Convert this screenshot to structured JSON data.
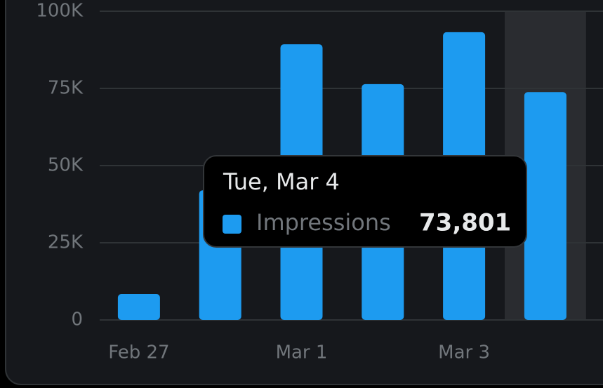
{
  "chart_data": {
    "type": "bar",
    "categories": [
      "Feb 27",
      null,
      "Mar 1",
      null,
      "Mar 3",
      null
    ],
    "series": [
      {
        "name": "Impressions",
        "color": "#1d9bf0",
        "values": [
          8400,
          42000,
          89300,
          76400,
          93200,
          73801
        ],
        "value_labels": [
          null,
          null,
          null,
          null,
          null,
          "73,801"
        ]
      }
    ],
    "ylim": [
      0,
      100000
    ],
    "yticks": [
      0,
      {
        "value": 25000,
        "label": "25K"
      },
      {
        "value": 50000,
        "label": "50K"
      },
      {
        "value": 75000,
        "label": "75K"
      },
      {
        "value": 100000,
        "label": "100K"
      }
    ],
    "grid": true,
    "tooltip": {
      "title": "Tue, Mar 4"
    }
  }
}
